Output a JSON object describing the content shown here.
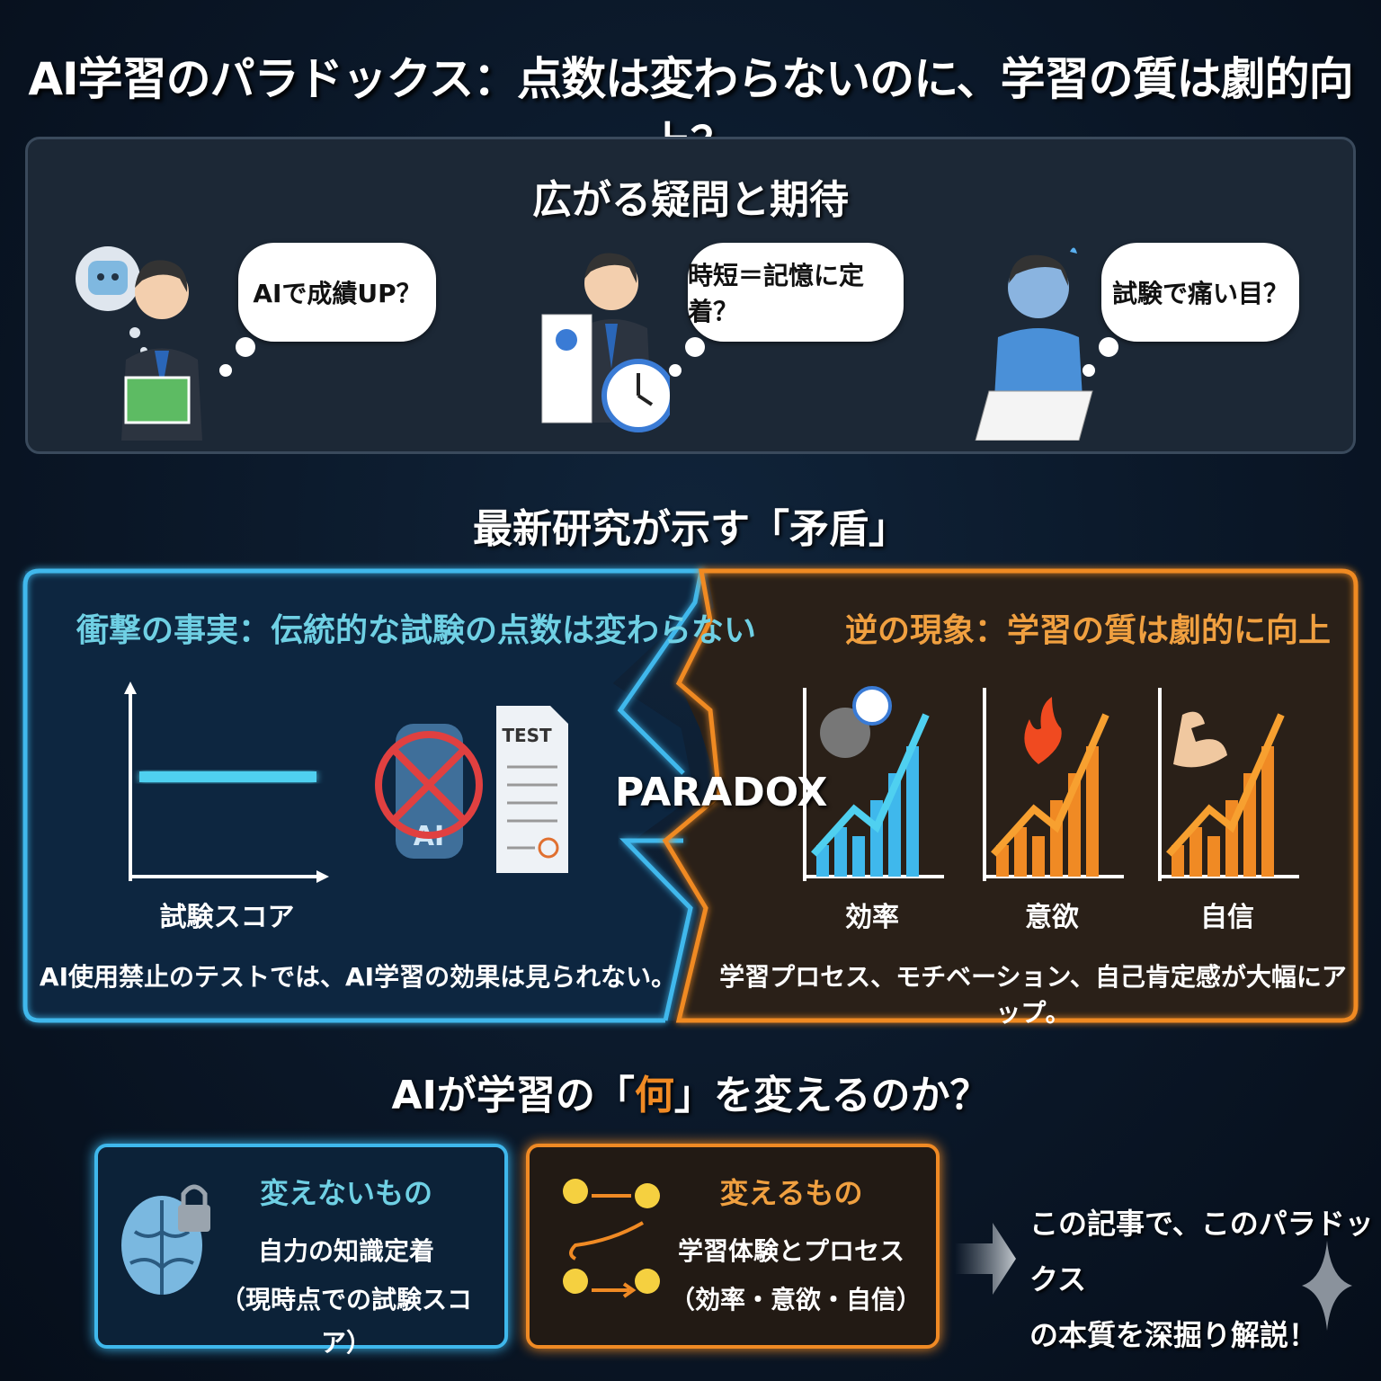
{
  "title": "AI学習のパラドックス：点数は変わらないのに、学習の質は劇的向上？",
  "questions": {
    "heading": "広がる疑問と期待",
    "bubbles": [
      "AIで成績UP？",
      "時短＝記憶に定着？",
      "試験で痛い目？"
    ]
  },
  "research": {
    "heading": "最新研究が示す「矛盾」",
    "left": {
      "heading": "衝撃の事実：伝統的な試験の点数は変わらない",
      "chart_label": "試験スコア",
      "test_label": "TEST",
      "ai_label": "AI",
      "caption": "AI使用禁止のテストでは、AI学習の効果は見られない。"
    },
    "center": "PARADOX",
    "right": {
      "heading": "逆の現象：学習の質は劇的に向上",
      "charts": [
        "効率",
        "意欲",
        "自信"
      ],
      "caption": "学習プロセス、モチベーション、自己肯定感が大幅にアップ。"
    }
  },
  "question2": {
    "before": "AIが学習の",
    "open": "「",
    "highlight": "何",
    "close": "」",
    "after": "を変えるのか？"
  },
  "unchanged": {
    "title": "変えないもの",
    "line1": "自力の知識定着",
    "line2": "（現時点での試験スコア）"
  },
  "changed": {
    "title": "変えるもの",
    "line1": "学習体験とプロセス",
    "line2": "（効率・意欲・自信）"
  },
  "cta": {
    "line1": "この記事で、このパラドックス",
    "line2": "の本質を深掘り解説！"
  },
  "colors": {
    "blue": "#3fb8ec",
    "orange": "#f08a24",
    "cyan_text": "#6fd0e4",
    "orange_text": "#f0a040"
  }
}
